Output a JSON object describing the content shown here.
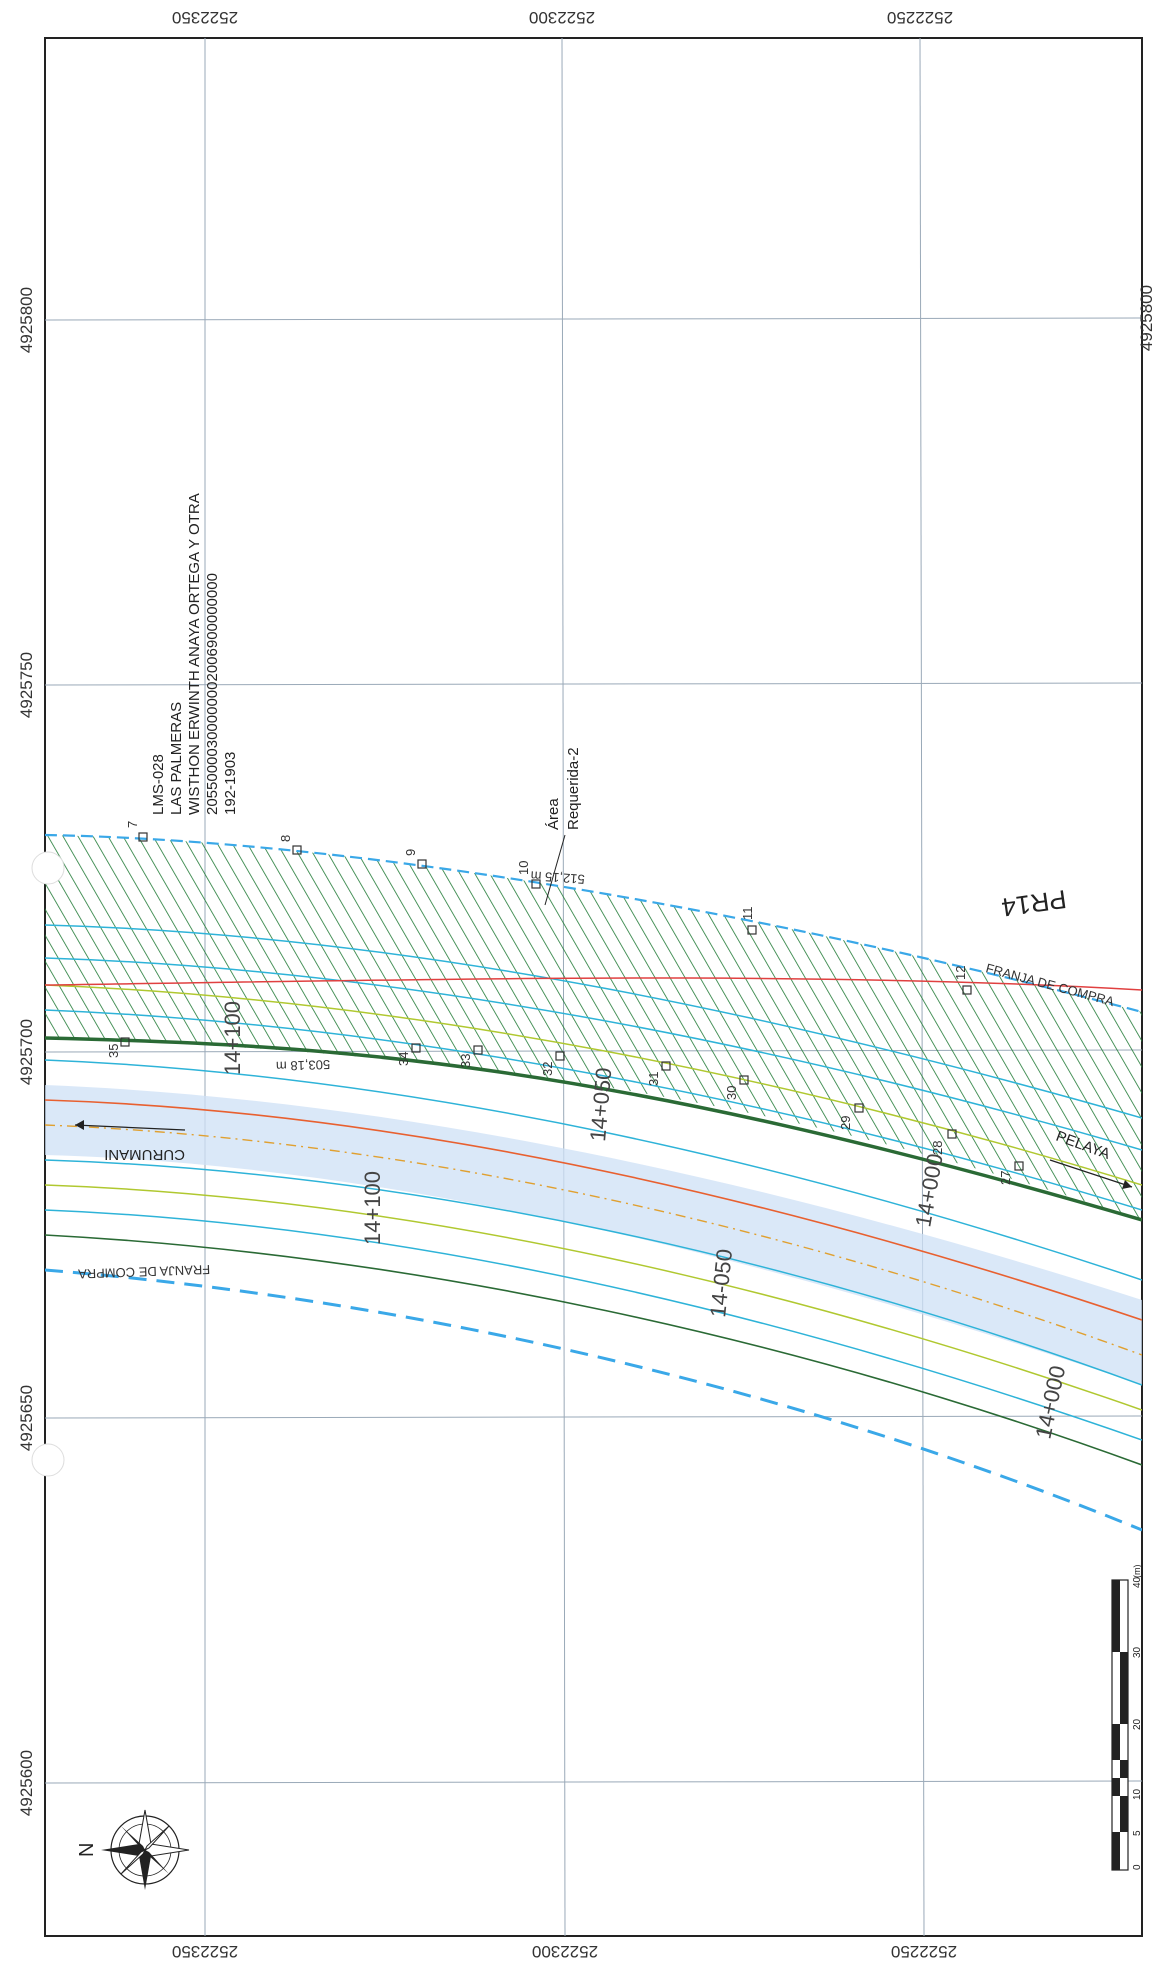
{
  "grid": {
    "eastings": [
      "2522350",
      "2522300",
      "2522250"
    ],
    "northings": [
      "4925800",
      "4925750",
      "4925700",
      "4925650",
      "4925600"
    ]
  },
  "parcel": {
    "code": "LMS-028",
    "name": "LAS PALMERAS",
    "owner": "WISTHON ERWINTH ANAYA ORTEGA Y OTRA",
    "cadastral": "20550000300000002006900000000",
    "registry": "192-1903"
  },
  "labels": {
    "area_line1": "Área",
    "area_line2": "Requerida-2",
    "length_top": "512,15 m",
    "length_bottom": "503,18 m",
    "zone": "PR14",
    "franja_top": "FRANJA DE COMPRA",
    "franja_bottom": "FRANJA DE COMPRA",
    "dir_left": "CURUMANI",
    "dir_right": "PELAYA"
  },
  "stations": {
    "s1": "14+100",
    "s2": "14+050",
    "s3": "14+000",
    "s4": "14+100",
    "s5": "14-050",
    "s6": "14+000"
  },
  "points": [
    "7",
    "8",
    "9",
    "10",
    "11",
    "12",
    "35",
    "34",
    "33",
    "32",
    "31",
    "30",
    "29",
    "28",
    "27"
  ],
  "scale": {
    "ticks": [
      "0",
      "5",
      "10",
      "20",
      "30",
      "40"
    ],
    "unit": "(m)"
  },
  "north": "N",
  "colors": {
    "hatch": "#1f7a35",
    "road": "#cde0f5",
    "boundary": "#2a6a35",
    "franja": "#3aa8e8"
  }
}
